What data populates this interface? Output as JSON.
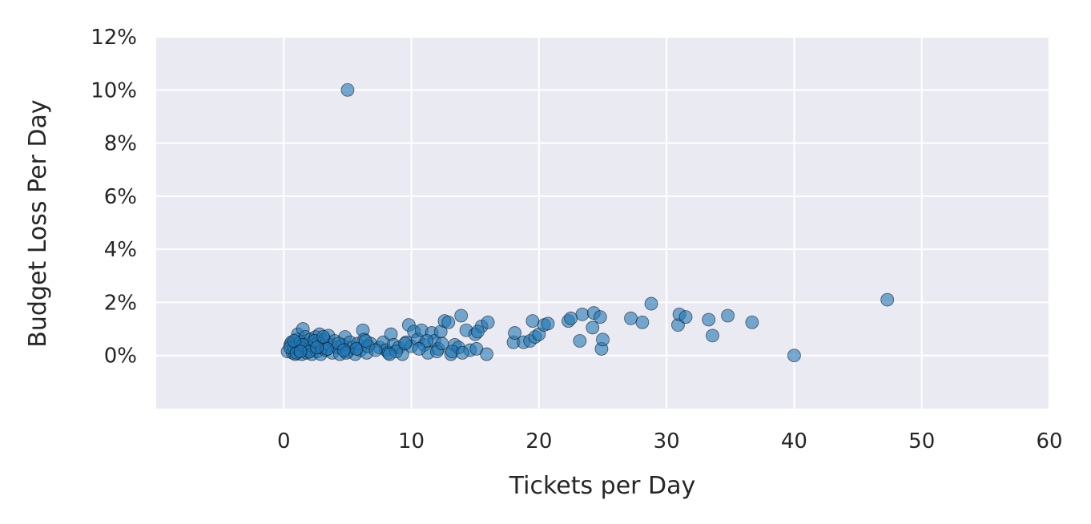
{
  "chart_data": {
    "type": "scatter",
    "title": "",
    "xlabel": "Tickets per Day",
    "ylabel": "Budget Loss Per Day",
    "xlim": [
      -10,
      60
    ],
    "ylim": [
      -2,
      12
    ],
    "x_ticks": [
      0,
      10,
      20,
      30,
      40,
      50,
      60
    ],
    "x_tick_labels": [
      "0",
      "10",
      "20",
      "30",
      "40",
      "50",
      "60"
    ],
    "y_ticks": [
      0,
      2,
      4,
      6,
      8,
      10,
      12
    ],
    "y_tick_labels": [
      "0%",
      "2%",
      "4%",
      "6%",
      "8%",
      "10%",
      "12%"
    ],
    "grid": true,
    "colors": {
      "background": "#eaeaf2",
      "grid": "#ffffff",
      "point_fill": "#1f77b4",
      "point_edge": "#000000"
    },
    "series": [
      {
        "points": [
          [
            0.3,
            0.15
          ],
          [
            0.5,
            0.4
          ],
          [
            0.6,
            0.5
          ],
          [
            0.7,
            0.1
          ],
          [
            0.8,
            0.3
          ],
          [
            0.9,
            0.05
          ],
          [
            1.0,
            0.6
          ],
          [
            1.1,
            0.8
          ],
          [
            1.2,
            0.2
          ],
          [
            1.3,
            0.5
          ],
          [
            1.4,
            0.05
          ],
          [
            1.5,
            1.0
          ],
          [
            1.6,
            0.3
          ],
          [
            1.7,
            0.7
          ],
          [
            1.8,
            0.1
          ],
          [
            1.9,
            0.45
          ],
          [
            2.0,
            0.25
          ],
          [
            2.1,
            0.6
          ],
          [
            2.2,
            0.05
          ],
          [
            2.3,
            0.35
          ],
          [
            2.5,
            0.7
          ],
          [
            2.6,
            0.15
          ],
          [
            2.7,
            0.5
          ],
          [
            2.8,
            0.8
          ],
          [
            2.9,
            0.05
          ],
          [
            3.0,
            0.3
          ],
          [
            3.2,
            0.6
          ],
          [
            3.3,
            0.2
          ],
          [
            3.5,
            0.75
          ],
          [
            3.6,
            0.4
          ],
          [
            3.8,
            0.1
          ],
          [
            4.0,
            0.55
          ],
          [
            4.2,
            0.3
          ],
          [
            4.4,
            0.05
          ],
          [
            4.6,
            0.4
          ],
          [
            4.8,
            0.7
          ],
          [
            5.0,
            10.0
          ],
          [
            5.0,
            0.15
          ],
          [
            5.2,
            0.5
          ],
          [
            5.4,
            0.3
          ],
          [
            5.6,
            0.05
          ],
          [
            5.8,
            0.45
          ],
          [
            6.0,
            0.2
          ],
          [
            6.2,
            0.95
          ],
          [
            6.3,
            0.6
          ],
          [
            6.5,
            0.1
          ],
          [
            6.8,
            0.45
          ],
          [
            7.5,
            0.3
          ],
          [
            7.8,
            0.5
          ],
          [
            8.0,
            0.2
          ],
          [
            8.2,
            0.1
          ],
          [
            8.4,
            0.8
          ],
          [
            8.6,
            0.4
          ],
          [
            9.0,
            0.3
          ],
          [
            9.3,
            0.05
          ],
          [
            9.6,
            0.5
          ],
          [
            9.8,
            1.15
          ],
          [
            10.0,
            0.35
          ],
          [
            10.2,
            0.9
          ],
          [
            10.5,
            0.6
          ],
          [
            10.8,
            0.95
          ],
          [
            11.0,
            0.4
          ],
          [
            11.3,
            0.1
          ],
          [
            11.6,
            0.85
          ],
          [
            11.8,
            0.55
          ],
          [
            12.1,
            0.25
          ],
          [
            12.3,
            0.9
          ],
          [
            12.6,
            1.3
          ],
          [
            12.9,
            1.25
          ],
          [
            13.1,
            0.05
          ],
          [
            13.4,
            0.4
          ],
          [
            13.7,
            0.3
          ],
          [
            13.9,
            1.5
          ],
          [
            14.3,
            0.95
          ],
          [
            14.6,
            0.2
          ],
          [
            15.0,
            0.8
          ],
          [
            15.1,
            0.25
          ],
          [
            15.5,
            1.1
          ],
          [
            15.9,
            0.05
          ],
          [
            16.0,
            1.25
          ],
          [
            18.0,
            0.5
          ],
          [
            18.1,
            0.85
          ],
          [
            18.8,
            0.5
          ],
          [
            19.3,
            0.55
          ],
          [
            19.5,
            1.3
          ],
          [
            19.7,
            0.7
          ],
          [
            20.0,
            0.8
          ],
          [
            20.4,
            1.15
          ],
          [
            20.7,
            1.2
          ],
          [
            22.3,
            1.3
          ],
          [
            22.5,
            1.4
          ],
          [
            23.2,
            0.55
          ],
          [
            23.4,
            1.55
          ],
          [
            24.2,
            1.05
          ],
          [
            24.3,
            1.6
          ],
          [
            24.8,
            1.45
          ],
          [
            24.9,
            0.25
          ],
          [
            25.0,
            0.6
          ],
          [
            27.2,
            1.4
          ],
          [
            28.1,
            1.25
          ],
          [
            28.8,
            1.95
          ],
          [
            30.9,
            1.15
          ],
          [
            31.0,
            1.55
          ],
          [
            31.5,
            1.45
          ],
          [
            33.3,
            1.35
          ],
          [
            33.6,
            0.75
          ],
          [
            34.8,
            1.5
          ],
          [
            36.7,
            1.25
          ],
          [
            40.0,
            0.0
          ],
          [
            47.3,
            2.1
          ],
          [
            0.5,
            0.3
          ],
          [
            1.0,
            0.1
          ],
          [
            1.5,
            0.4
          ],
          [
            2.0,
            0.15
          ],
          [
            2.4,
            0.55
          ],
          [
            3.4,
            0.25
          ],
          [
            4.3,
            0.45
          ],
          [
            4.9,
            0.1
          ],
          [
            5.7,
            0.25
          ],
          [
            6.6,
            0.35
          ],
          [
            7.2,
            0.2
          ],
          [
            8.8,
            0.15
          ],
          [
            9.5,
            0.45
          ],
          [
            11.2,
            0.55
          ],
          [
            12.0,
            0.15
          ],
          [
            13.2,
            0.15
          ],
          [
            14.0,
            0.1
          ],
          [
            0.8,
            0.55
          ],
          [
            1.3,
            0.15
          ],
          [
            2.6,
            0.3
          ],
          [
            3.1,
            0.7
          ],
          [
            4.7,
            0.2
          ],
          [
            6.4,
            0.55
          ],
          [
            8.3,
            0.05
          ],
          [
            10.6,
            0.25
          ],
          [
            12.4,
            0.45
          ],
          [
            15.2,
            0.9
          ]
        ]
      }
    ]
  }
}
